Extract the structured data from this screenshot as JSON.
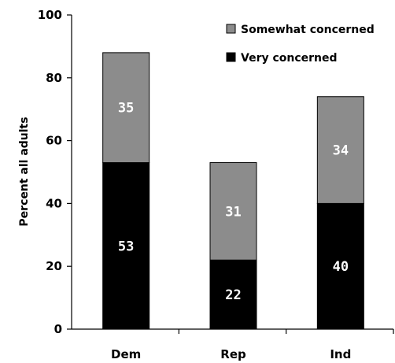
{
  "chart_data": {
    "type": "bar",
    "stacked": true,
    "categories": [
      "Dem",
      "Rep",
      "Ind"
    ],
    "series": [
      {
        "name": "Very concerned",
        "values": [
          53,
          22,
          40
        ],
        "color": "#000000"
      },
      {
        "name": "Somewhat concerned",
        "values": [
          35,
          31,
          34
        ],
        "color": "#8c8c8c"
      }
    ],
    "ylabel": "Percent all adults",
    "ylim": [
      0,
      100
    ],
    "yticks": [
      0,
      20,
      40,
      60,
      80,
      100
    ],
    "grid": false,
    "legend": {
      "placement": "top-right",
      "order": [
        "Somewhat concerned",
        "Very concerned"
      ]
    }
  }
}
